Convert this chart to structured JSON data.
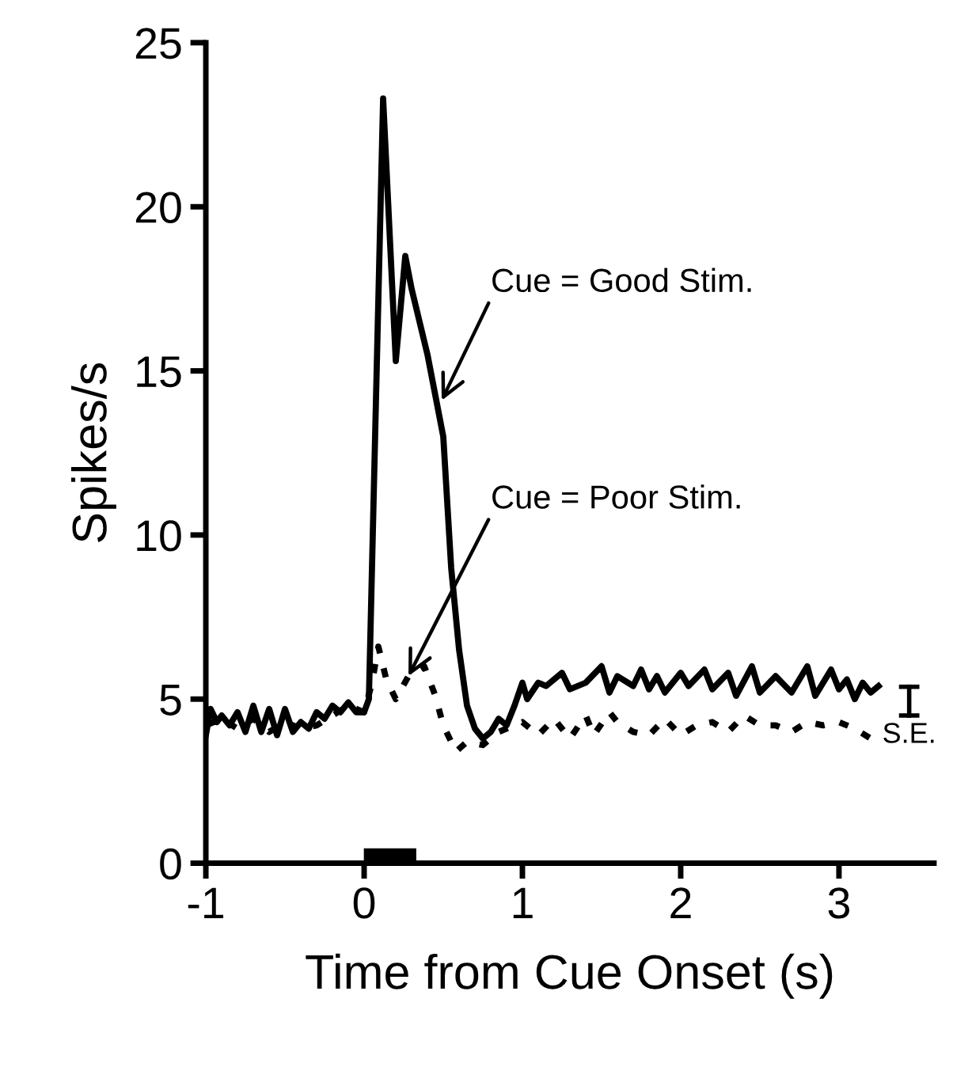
{
  "chart_data": {
    "type": "line",
    "xlabel": "Time from Cue Onset (s)",
    "ylabel": "Spikes/s",
    "xlim": [
      -1,
      3.6
    ],
    "xticks": [
      -1,
      0,
      1,
      2,
      3
    ],
    "ylim": [
      0,
      25
    ],
    "yticks": [
      0,
      5,
      10,
      15,
      20,
      25
    ],
    "grid": false,
    "series": [
      {
        "color": "#000000",
        "line_style": "solid",
        "x": [
          -1,
          -0.97,
          -0.93,
          -0.9,
          -0.85,
          -0.8,
          -0.75,
          -0.7,
          -0.65,
          -0.6,
          -0.55,
          -0.5,
          -0.45,
          -0.4,
          -0.35,
          -0.3,
          -0.25,
          -0.2,
          -0.15,
          -0.1,
          -0.05,
          0.0,
          0.03,
          0.12,
          0.2,
          0.26,
          0.3,
          0.4,
          0.5,
          0.55,
          0.6,
          0.65,
          0.7,
          0.75,
          0.8,
          0.85,
          0.9,
          0.95,
          1.0,
          1.03,
          1.1,
          1.15,
          1.25,
          1.3,
          1.4,
          1.5,
          1.55,
          1.6,
          1.7,
          1.75,
          1.8,
          1.85,
          1.9,
          2.0,
          2.05,
          2.15,
          2.2,
          2.3,
          2.35,
          2.45,
          2.5,
          2.6,
          2.7,
          2.8,
          2.85,
          2.95,
          3.0,
          3.05,
          3.1,
          3.15,
          3.2,
          3.25
        ],
        "values": [
          3.9,
          4.7,
          4.3,
          4.5,
          4.2,
          4.6,
          4.0,
          4.8,
          4.0,
          4.7,
          3.9,
          4.7,
          4.0,
          4.3,
          4.1,
          4.6,
          4.4,
          4.8,
          4.6,
          4.9,
          4.6,
          4.6,
          5.0,
          23.3,
          15.3,
          18.5,
          17.5,
          15.5,
          13.0,
          9.0,
          6.5,
          4.8,
          4.1,
          3.8,
          4.0,
          4.4,
          4.2,
          4.8,
          5.5,
          5.0,
          5.5,
          5.4,
          5.8,
          5.3,
          5.5,
          6.0,
          5.2,
          5.7,
          5.4,
          5.9,
          5.3,
          5.7,
          5.2,
          5.8,
          5.4,
          5.9,
          5.3,
          5.8,
          5.1,
          6.0,
          5.2,
          5.7,
          5.2,
          6.0,
          5.1,
          5.9,
          5.3,
          5.6,
          5.0,
          5.5,
          5.2,
          5.4
        ]
      },
      {
        "color": "#000000",
        "line_style": "dotted",
        "x": [
          -1,
          -0.9,
          -0.8,
          -0.7,
          -0.6,
          -0.5,
          -0.4,
          -0.3,
          -0.2,
          -0.1,
          0.0,
          0.05,
          0.09,
          0.14,
          0.2,
          0.28,
          0.38,
          0.45,
          0.5,
          0.58,
          0.65,
          0.75,
          0.85,
          1.0,
          1.1,
          1.2,
          1.3,
          1.4,
          1.45,
          1.55,
          1.6,
          1.7,
          1.8,
          1.9,
          2.0,
          2.1,
          2.2,
          2.3,
          2.4,
          2.5,
          2.6,
          2.7,
          2.8,
          2.9,
          3.0,
          3.1,
          3.2
        ],
        "values": [
          4.2,
          4.4,
          4.1,
          4.4,
          4.0,
          4.3,
          4.1,
          4.2,
          4.5,
          4.8,
          4.6,
          5.5,
          6.6,
          5.6,
          5.0,
          5.7,
          6.0,
          5.1,
          4.2,
          3.4,
          3.7,
          3.6,
          4.0,
          4.3,
          3.9,
          4.4,
          3.8,
          4.5,
          3.9,
          4.6,
          4.3,
          4.0,
          3.9,
          4.4,
          3.9,
          4.2,
          4.3,
          4.0,
          4.5,
          4.2,
          4.2,
          4.0,
          4.3,
          4.2,
          4.3,
          4.1,
          3.8
        ]
      }
    ],
    "annotations": [
      {
        "text": "Cue = Good Stim.",
        "x": 0.49,
        "y": 14.1
      },
      {
        "text": "Cue = Poor Stim.",
        "x": 0.28,
        "y": 5.7
      },
      "S.E."
    ]
  }
}
